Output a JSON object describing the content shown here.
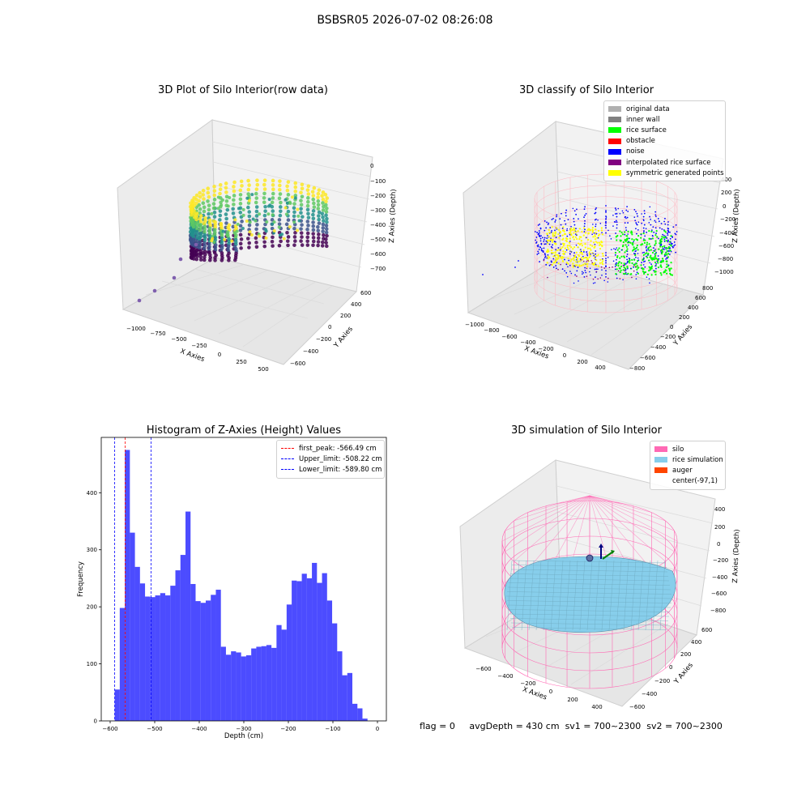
{
  "figure": {
    "suptitle": "BSBSR05 2026-07-02 08:26:08",
    "status_line": {
      "flag": "flag = 0",
      "avg_depth": "avgDepth = 430 cm",
      "sv1": "sv1 = 700~2300",
      "sv2": "sv2 = 700~2300"
    }
  },
  "chart_data": [
    {
      "type": "scatter",
      "title": "3D Plot of Silo Interior(row data)",
      "xlabel": "X Axies",
      "ylabel": "Y Axies",
      "zlabel": "Z Axies (Depth)",
      "x_ticks": [
        "-1000",
        "-750",
        "-500",
        "-250",
        "0",
        "250",
        "500"
      ],
      "y_ticks": [
        "-600",
        "-400",
        "-200",
        "0",
        "200",
        "400",
        "600"
      ],
      "z_ticks": [
        "0",
        "-100",
        "-200",
        "-300",
        "-400",
        "-500",
        "-600",
        "-700"
      ],
      "colormap": [
        "#440154",
        "#3b528b",
        "#21918c",
        "#5ec962",
        "#fde725"
      ]
    },
    {
      "type": "scatter",
      "title": "3D classify of Silo Interior",
      "xlabel": "X Axies",
      "ylabel": "Y Axies",
      "zlabel": "Z Axies (Depth)",
      "x_ticks": [
        "-1000",
        "-800",
        "-600",
        "-400",
        "-200",
        "0",
        "200",
        "400"
      ],
      "y_ticks": [
        "-800",
        "-600",
        "-400",
        "-200",
        "0",
        "200",
        "400",
        "600",
        "800"
      ],
      "z_ticks": [
        "400",
        "200",
        "0",
        "-200",
        "-400",
        "-600",
        "-800",
        "-1000"
      ],
      "legend": [
        {
          "label": "original data",
          "color": "#b0b0b0"
        },
        {
          "label": "inner wall",
          "color": "#808080"
        },
        {
          "label": "rice surface",
          "color": "#00ff00"
        },
        {
          "label": "obstacle",
          "color": "#ff0000"
        },
        {
          "label": "noise",
          "color": "#0000ff"
        },
        {
          "label": "interpolated rice surface",
          "color": "#800080"
        },
        {
          "label": "symmetric generated points",
          "color": "#ffff00"
        }
      ],
      "silo_color": "#ffb6c1"
    },
    {
      "type": "bar",
      "title": "Histogram of Z-Axies (Height) Values",
      "xlabel": "Depth (cm)",
      "ylabel": "Frequency",
      "xlim": [
        -620,
        20
      ],
      "ylim": [
        0,
        497
      ],
      "x_ticks": [
        -600,
        -500,
        -400,
        -300,
        -200,
        -100,
        0
      ],
      "y_ticks": [
        0,
        100,
        200,
        300,
        400
      ],
      "bin_start": -589.8,
      "bin_width": 11.35,
      "values": [
        55,
        198,
        475,
        330,
        270,
        241,
        218,
        217,
        220,
        224,
        220,
        237,
        264,
        291,
        367,
        240,
        210,
        207,
        211,
        221,
        230,
        130,
        116,
        122,
        120,
        113,
        115,
        127,
        130,
        131,
        133,
        128,
        168,
        160,
        204,
        246,
        245,
        258,
        250,
        277,
        242,
        259,
        211,
        171,
        122,
        80,
        84,
        30,
        22,
        4
      ],
      "bar_color": "#0000ff",
      "bar_alpha": 0.7,
      "vlines": [
        {
          "label": "first_peak: -566.49 cm",
          "x": -566.49,
          "color": "#ff0000"
        },
        {
          "label": "Upper_limit: -508.22 cm",
          "x": -508.22,
          "color": "#0000ff"
        },
        {
          "label": "Lower_limit: -589.80 cm",
          "x": -589.8,
          "color": "#0000ff"
        }
      ],
      "legend_position": "upper right"
    },
    {
      "type": "area",
      "title": "3D simulation of Silo Interior",
      "xlabel": "X Axies",
      "ylabel": "Y Axies",
      "zlabel": "Z Axies (Depth)",
      "x_ticks": [
        "-600",
        "-400",
        "-200",
        "0",
        "200",
        "400"
      ],
      "y_ticks": [
        "-600",
        "-400",
        "-200",
        "0",
        "200",
        "400",
        "600"
      ],
      "z_ticks": [
        "400",
        "200",
        "0",
        "-200",
        "-400",
        "-600",
        "-800"
      ],
      "legend": [
        {
          "label": "silo",
          "color": "#ff69b4"
        },
        {
          "label": "rice simulation",
          "color": "#87ceeb"
        },
        {
          "label": "auger",
          "color": "#ff4500"
        },
        {
          "label": "center(-97,1)",
          "color": ""
        }
      ]
    }
  ]
}
